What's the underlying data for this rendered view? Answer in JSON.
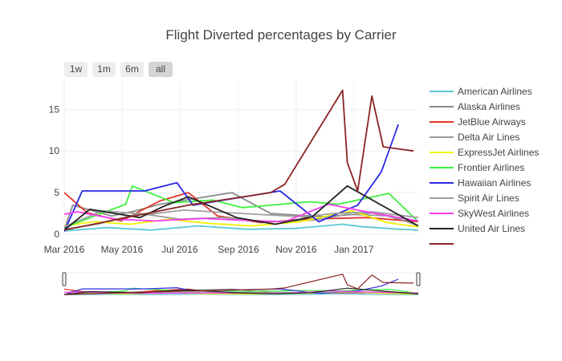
{
  "chart_data": {
    "type": "line",
    "title": "Flight Diverted percentages by Carrier",
    "xlabel": "",
    "ylabel": "",
    "x_range": [
      "2016-03-01",
      "2017-03-10"
    ],
    "ylim": [
      0,
      18.5
    ],
    "y_ticks": [
      0,
      5,
      10,
      15
    ],
    "x_ticks": [
      {
        "date": "2016-03-01",
        "label": "Mar 2016"
      },
      {
        "date": "2016-05-01",
        "label": "May 2016"
      },
      {
        "date": "2016-07-01",
        "label": "Jul 2016"
      },
      {
        "date": "2016-09-01",
        "label": "Sep 2016"
      },
      {
        "date": "2016-11-01",
        "label": "Nov 2016"
      },
      {
        "date": "2017-01-01",
        "label": "Jan 2017"
      }
    ],
    "grid": true,
    "legend_position": "right",
    "range_selector": [
      {
        "label": "1w",
        "active": false
      },
      {
        "label": "1m",
        "active": false
      },
      {
        "label": "6m",
        "active": false
      },
      {
        "label": "all",
        "active": true
      }
    ],
    "series": [
      {
        "name": "American Airlines",
        "color": "#5bc8d4",
        "points": [
          [
            "2016-03-01",
            0.4
          ],
          [
            "2016-04-15",
            0.8
          ],
          [
            "2016-06-01",
            0.5
          ],
          [
            "2016-07-20",
            1.0
          ],
          [
            "2016-09-10",
            0.6
          ],
          [
            "2016-11-01",
            0.7
          ],
          [
            "2016-12-20",
            1.2
          ],
          [
            "2017-01-10",
            0.9
          ],
          [
            "2017-02-20",
            0.6
          ],
          [
            "2017-03-10",
            0.5
          ]
        ]
      },
      {
        "name": "Alaska Airlines",
        "color": "#8c8c8c",
        "points": [
          [
            "2016-03-01",
            0.5
          ],
          [
            "2016-03-10",
            3.5
          ],
          [
            "2016-04-20",
            2.2
          ],
          [
            "2016-05-15",
            2.8
          ],
          [
            "2016-06-10",
            3.6
          ],
          [
            "2016-08-25",
            5.0
          ],
          [
            "2016-10-05",
            2.5
          ],
          [
            "2016-12-01",
            2.1
          ],
          [
            "2017-01-25",
            2.6
          ],
          [
            "2017-03-01",
            1.4
          ]
        ]
      },
      {
        "name": "JetBlue Airways",
        "color": "#e0352b",
        "points": [
          [
            "2016-03-01",
            5.0
          ],
          [
            "2016-03-25",
            2.6
          ],
          [
            "2016-04-30",
            1.6
          ],
          [
            "2016-06-10",
            4.0
          ],
          [
            "2016-07-10",
            5.0
          ],
          [
            "2016-08-10",
            2.2
          ],
          [
            "2016-09-25",
            1.4
          ],
          [
            "2016-11-10",
            1.8
          ],
          [
            "2017-01-15",
            2.0
          ],
          [
            "2017-03-10",
            1.5
          ]
        ]
      },
      {
        "name": "Delta Air Lines",
        "color": "#999999",
        "points": [
          [
            "2016-03-01",
            0.6
          ],
          [
            "2016-04-05",
            1.2
          ],
          [
            "2016-05-20",
            2.5
          ],
          [
            "2016-07-01",
            1.8
          ],
          [
            "2016-08-15",
            2.0
          ],
          [
            "2016-10-01",
            1.5
          ],
          [
            "2016-11-20",
            1.7
          ],
          [
            "2016-12-25",
            2.4
          ],
          [
            "2017-02-10",
            2.2
          ],
          [
            "2017-03-10",
            1.0
          ]
        ]
      },
      {
        "name": "ExpressJet Airlines",
        "color": "#f2f200",
        "points": [
          [
            "2016-03-01",
            1.0
          ],
          [
            "2016-04-01",
            1.5
          ],
          [
            "2016-05-10",
            1.2
          ],
          [
            "2016-06-20",
            1.8
          ],
          [
            "2016-08-01",
            1.3
          ],
          [
            "2016-09-15",
            1.0
          ],
          [
            "2016-11-05",
            1.5
          ],
          [
            "2016-12-30",
            2.8
          ],
          [
            "2017-02-05",
            1.4
          ],
          [
            "2017-03-10",
            0.9
          ]
        ]
      },
      {
        "name": "Frontier Airlines",
        "color": "#3df23d",
        "points": [
          [
            "2016-03-01",
            0.8
          ],
          [
            "2016-05-05",
            3.6
          ],
          [
            "2016-05-12",
            5.8
          ],
          [
            "2016-06-25",
            3.8
          ],
          [
            "2016-08-05",
            4.1
          ],
          [
            "2016-09-05",
            3.2
          ],
          [
            "2016-11-15",
            3.9
          ],
          [
            "2016-12-15",
            3.6
          ],
          [
            "2017-02-07",
            4.9
          ],
          [
            "2017-03-10",
            1.5
          ]
        ]
      },
      {
        "name": "Hawaiian Airlines",
        "color": "#2a2ae6",
        "points": [
          [
            "2016-03-01",
            0.3
          ],
          [
            "2016-03-20",
            5.2
          ],
          [
            "2016-05-25",
            5.2
          ],
          [
            "2016-06-28",
            6.2
          ],
          [
            "2016-07-15",
            3.5
          ],
          [
            "2016-10-15",
            5.2
          ],
          [
            "2016-11-25",
            1.5
          ],
          [
            "2017-01-05",
            3.5
          ],
          [
            "2017-01-30",
            7.5
          ],
          [
            "2017-02-17",
            13.2
          ]
        ]
      },
      {
        "name": "Spirit Air Lines",
        "color": "#9e9e9e",
        "points": [
          [
            "2016-03-01",
            0.9
          ],
          [
            "2016-04-10",
            2.8
          ],
          [
            "2016-05-30",
            2.4
          ],
          [
            "2016-07-05",
            2.9
          ],
          [
            "2016-08-20",
            2.6
          ],
          [
            "2016-09-20",
            2.4
          ],
          [
            "2016-11-10",
            2.1
          ],
          [
            "2016-12-10",
            2.5
          ],
          [
            "2017-01-20",
            2.7
          ],
          [
            "2017-03-10",
            2.0
          ]
        ]
      },
      {
        "name": "SkyWest Airlines",
        "color": "#f53df2",
        "points": [
          [
            "2016-03-01",
            2.4
          ],
          [
            "2016-03-15",
            2.7
          ],
          [
            "2016-04-25",
            1.8
          ],
          [
            "2016-06-05",
            1.6
          ],
          [
            "2016-07-25",
            1.9
          ],
          [
            "2016-09-01",
            1.7
          ],
          [
            "2016-10-20",
            1.5
          ],
          [
            "2016-12-05",
            3.6
          ],
          [
            "2017-01-28",
            2.4
          ],
          [
            "2017-03-10",
            1.6
          ]
        ]
      },
      {
        "name": "United Air Lines",
        "color": "#222222",
        "points": [
          [
            "2016-03-01",
            0.5
          ],
          [
            "2016-03-28",
            3.0
          ],
          [
            "2016-05-20",
            2.0
          ],
          [
            "2016-06-15",
            3.4
          ],
          [
            "2016-07-10",
            4.5
          ],
          [
            "2016-08-30",
            2.0
          ],
          [
            "2016-10-10",
            1.2
          ],
          [
            "2016-11-18",
            2.1
          ],
          [
            "2016-12-25",
            5.8
          ],
          [
            "2017-03-10",
            1.0
          ]
        ]
      },
      {
        "name": "",
        "color": "#8b2323",
        "points": [
          [
            "2016-03-01",
            0.5
          ],
          [
            "2016-07-10",
            3.5
          ],
          [
            "2016-10-05",
            5.0
          ],
          [
            "2016-10-20",
            6.0
          ],
          [
            "2016-12-20",
            17.3
          ],
          [
            "2016-12-25",
            8.6
          ],
          [
            "2017-01-05",
            5.2
          ],
          [
            "2017-01-20",
            16.6
          ],
          [
            "2017-02-01",
            10.5
          ],
          [
            "2017-03-05",
            10.0
          ]
        ]
      }
    ]
  }
}
